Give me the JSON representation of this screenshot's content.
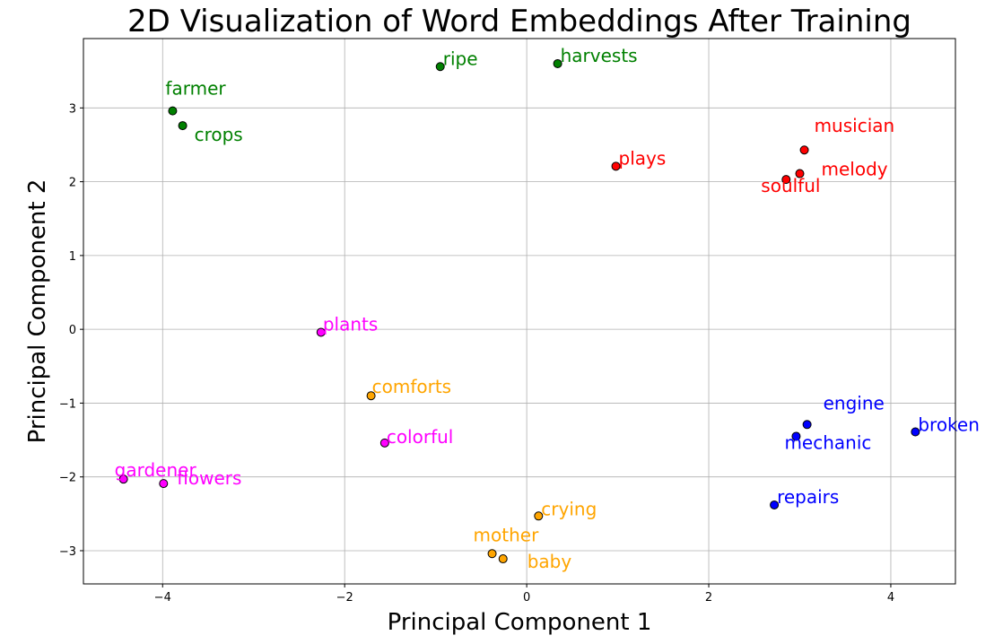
{
  "chart_data": {
    "type": "scatter",
    "title": "2D Visualization of Word Embeddings After Training",
    "xlabel": "Principal Component 1",
    "ylabel": "Principal Component 2",
    "xlim": [
      -4.87,
      4.71
    ],
    "ylim": [
      -3.45,
      3.94
    ],
    "grid": true,
    "xticks": [
      -4,
      -2,
      0,
      2,
      4
    ],
    "yticks": [
      3,
      2,
      1,
      0,
      -1,
      -2,
      -3
    ],
    "xtick_labels": [
      "−4",
      "−2",
      "0",
      "2",
      "4"
    ],
    "ytick_labels": [
      "3",
      "2",
      "1",
      "0",
      "−1",
      "−2",
      "−3"
    ],
    "points": [
      {
        "word": "farmer",
        "x": -3.89,
        "y": 2.96,
        "color": "#008000"
      },
      {
        "word": "crops",
        "x": -3.78,
        "y": 2.76,
        "color": "#008000"
      },
      {
        "word": "ripe",
        "x": -0.95,
        "y": 3.56,
        "color": "#008000"
      },
      {
        "word": "harvests",
        "x": 0.34,
        "y": 3.6,
        "color": "#008000"
      },
      {
        "word": "plays",
        "x": 0.98,
        "y": 2.21,
        "color": "#ff0000"
      },
      {
        "word": "musician",
        "x": 3.05,
        "y": 2.43,
        "color": "#ff0000"
      },
      {
        "word": "melody",
        "x": 3.0,
        "y": 2.11,
        "color": "#ff0000"
      },
      {
        "word": "soulful",
        "x": 2.85,
        "y": 2.03,
        "color": "#ff0000"
      },
      {
        "word": "plants",
        "x": -2.26,
        "y": -0.04,
        "color": "#ff00ff"
      },
      {
        "word": "comforts",
        "x": -1.71,
        "y": -0.9,
        "color": "#ffa500"
      },
      {
        "word": "colorful",
        "x": -1.56,
        "y": -1.54,
        "color": "#ff00ff"
      },
      {
        "word": "gardener",
        "x": -4.43,
        "y": -2.03,
        "color": "#ff00ff"
      },
      {
        "word": "flowers",
        "x": -3.99,
        "y": -2.09,
        "color": "#ff00ff"
      },
      {
        "word": "crying",
        "x": 0.13,
        "y": -2.53,
        "color": "#ffa500"
      },
      {
        "word": "mother",
        "x": -0.38,
        "y": -3.04,
        "color": "#ffa500"
      },
      {
        "word": "baby",
        "x": -0.26,
        "y": -3.11,
        "color": "#ffa500"
      },
      {
        "word": "engine",
        "x": 3.08,
        "y": -1.29,
        "color": "#0000ff"
      },
      {
        "word": "mechanic",
        "x": 2.96,
        "y": -1.45,
        "color": "#0000ff"
      },
      {
        "word": "broken",
        "x": 4.27,
        "y": -1.39,
        "color": "#0000ff"
      },
      {
        "word": "repairs",
        "x": 2.72,
        "y": -2.38,
        "color": "#0000ff"
      }
    ]
  }
}
